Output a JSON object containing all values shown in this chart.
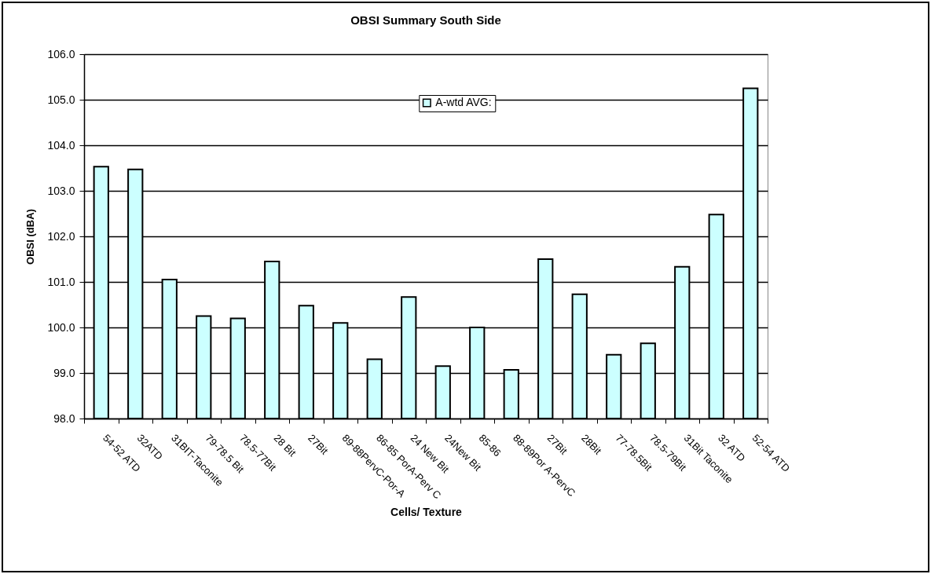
{
  "chart_data": {
    "type": "bar",
    "title": "OBSI Summary South Side",
    "xlabel": "Cells/ Texture",
    "ylabel": "OBSI (dBA)",
    "categories": [
      "54-52 ATD",
      "32ATD",
      "31BIT-Taconite",
      "79-78.5 Bit",
      "78.5-77Bit",
      "28 Bit",
      "27Bit",
      "89-88PervC-Por-A",
      "86-85 PorA-Perv C",
      "24 New Bit",
      "24New Bit",
      "85-86",
      "88-89Por A-PervC",
      "27Bit",
      "28Bit",
      "77-78.5Bit",
      "78.5-79Bit",
      "31Bit Taconite",
      "32 ATD",
      "52-54 ATD"
    ],
    "series": [
      {
        "name": "A-wtd AVG:",
        "color": "#ccffff",
        "values": [
          103.53,
          103.47,
          101.05,
          100.25,
          100.2,
          101.45,
          100.48,
          100.1,
          99.3,
          100.67,
          99.15,
          100.0,
          99.07,
          101.5,
          100.73,
          99.4,
          99.65,
          101.33,
          102.48,
          105.25
        ]
      }
    ],
    "ylim": [
      98,
      106
    ],
    "yticks": [
      {
        "value": 98,
        "label": "98.0"
      },
      {
        "value": 99,
        "label": "99.0"
      },
      {
        "value": 100,
        "label": "100.0"
      },
      {
        "value": 101,
        "label": "101.0"
      },
      {
        "value": 102,
        "label": "102.0"
      },
      {
        "value": 103,
        "label": "103.0"
      },
      {
        "value": 104,
        "label": "104.0"
      },
      {
        "value": 105,
        "label": "105.0"
      },
      {
        "value": 106,
        "label": "106.0"
      }
    ],
    "grid": "y",
    "legend": "top"
  }
}
